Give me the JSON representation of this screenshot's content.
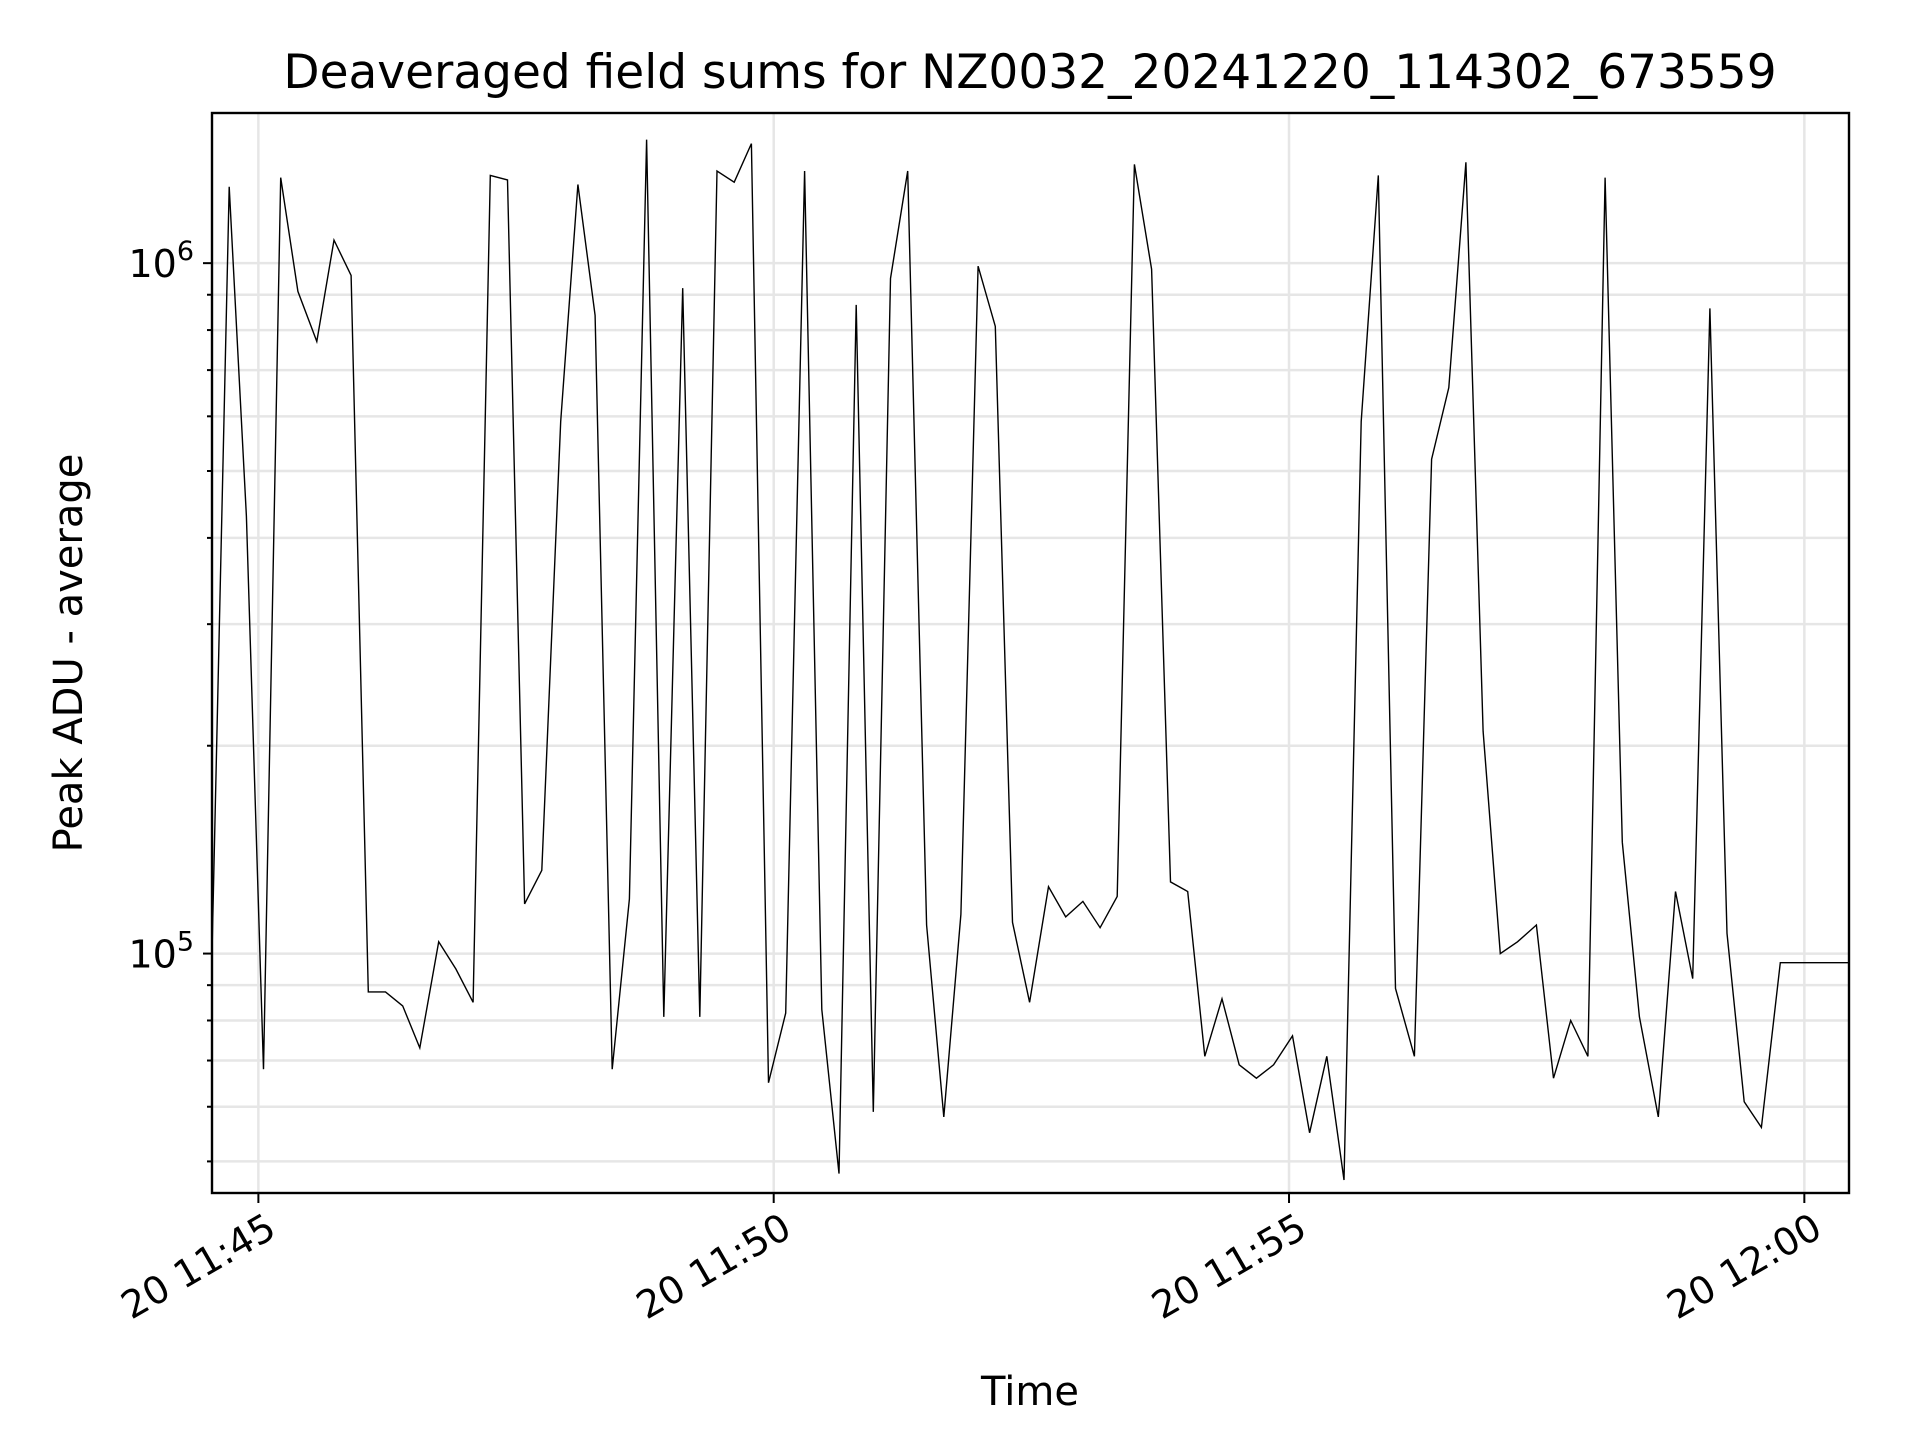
{
  "chart_data": {
    "type": "line",
    "title": "Deaveraged field sums for NZ0032_20241220_114302_673559",
    "xlabel": "Time",
    "ylabel": "Peak ADU - average",
    "yscale": "log",
    "x_unit": "time of day (HH:MM:SS), 2024-12-20",
    "xlim": [
      "11:44:33",
      "12:00:26"
    ],
    "ylim": [
      45000,
      1650000
    ],
    "grid": true,
    "x_ticks": [
      {
        "value": "11:45:00",
        "label": "20 11:45"
      },
      {
        "value": "11:50:00",
        "label": "20 11:50"
      },
      {
        "value": "11:55:00",
        "label": "20 11:55"
      },
      {
        "value": "12:00:00",
        "label": "20 12:00"
      }
    ],
    "y_ticks": [
      {
        "value": 100000,
        "label_base": "10",
        "label_exp": "5"
      },
      {
        "value": 1000000,
        "label_base": "10",
        "label_exp": "6"
      }
    ],
    "series": [
      {
        "color": "#000000",
        "points": [
          [
            "11:44:33",
            100000
          ],
          [
            "11:44:43",
            1290000
          ],
          [
            "11:44:53",
            430000
          ],
          [
            "11:45:03",
            68000
          ],
          [
            "11:45:13",
            1330000
          ],
          [
            "11:45:23",
            910000
          ],
          [
            "11:45:34",
            770000
          ],
          [
            "11:45:44",
            1080000
          ],
          [
            "11:45:54",
            960000
          ],
          [
            "11:46:04",
            88000
          ],
          [
            "11:46:14",
            88000
          ],
          [
            "11:46:24",
            84000
          ],
          [
            "11:46:34",
            73000
          ],
          [
            "11:46:45",
            104000
          ],
          [
            "11:46:55",
            95000
          ],
          [
            "11:47:05",
            85000
          ],
          [
            "11:47:15",
            1340000
          ],
          [
            "11:47:25",
            1320000
          ],
          [
            "11:47:35",
            118000
          ],
          [
            "11:47:45",
            132000
          ],
          [
            "11:47:56",
            590000
          ],
          [
            "11:48:06",
            1300000
          ],
          [
            "11:48:16",
            840000
          ],
          [
            "11:48:26",
            68000
          ],
          [
            "11:48:36",
            120000
          ],
          [
            "11:48:46",
            1510000
          ],
          [
            "11:48:56",
            81000
          ],
          [
            "11:49:07",
            920000
          ],
          [
            "11:49:17",
            81000
          ],
          [
            "11:49:27",
            1360000
          ],
          [
            "11:49:37",
            1310000
          ],
          [
            "11:49:47",
            1490000
          ],
          [
            "11:49:57",
            65000
          ],
          [
            "11:50:07",
            82000
          ],
          [
            "11:50:18",
            1360000
          ],
          [
            "11:50:28",
            83000
          ],
          [
            "11:50:38",
            48000
          ],
          [
            "11:50:48",
            870000
          ],
          [
            "11:50:58",
            59000
          ],
          [
            "11:51:08",
            950000
          ],
          [
            "11:51:18",
            1360000
          ],
          [
            "11:51:29",
            110000
          ],
          [
            "11:51:39",
            58000
          ],
          [
            "11:51:49",
            114000
          ],
          [
            "11:51:59",
            990000
          ],
          [
            "11:52:09",
            810000
          ],
          [
            "11:52:19",
            111000
          ],
          [
            "11:52:29",
            85000
          ],
          [
            "11:52:40",
            125000
          ],
          [
            "11:52:50",
            113000
          ],
          [
            "11:53:00",
            119000
          ],
          [
            "11:53:10",
            109000
          ],
          [
            "11:53:20",
            121000
          ],
          [
            "11:53:30",
            1390000
          ],
          [
            "11:53:40",
            980000
          ],
          [
            "11:53:51",
            127000
          ],
          [
            "11:54:01",
            123000
          ],
          [
            "11:54:11",
            71000
          ],
          [
            "11:54:21",
            86000
          ],
          [
            "11:54:31",
            69000
          ],
          [
            "11:54:41",
            66000
          ],
          [
            "11:54:51",
            69000
          ],
          [
            "11:55:02",
            76000
          ],
          [
            "11:55:12",
            55000
          ],
          [
            "11:55:22",
            71000
          ],
          [
            "11:55:32",
            47000
          ],
          [
            "11:55:42",
            590000
          ],
          [
            "11:55:52",
            1340000
          ],
          [
            "11:56:02",
            89000
          ],
          [
            "11:56:13",
            71000
          ],
          [
            "11:56:23",
            520000
          ],
          [
            "11:56:33",
            660000
          ],
          [
            "11:56:43",
            1400000
          ],
          [
            "11:56:53",
            210000
          ],
          [
            "11:57:03",
            100000
          ],
          [
            "11:57:13",
            104000
          ],
          [
            "11:57:24",
            110000
          ],
          [
            "11:57:34",
            66000
          ],
          [
            "11:57:44",
            80000
          ],
          [
            "11:57:54",
            71000
          ],
          [
            "11:58:04",
            1330000
          ],
          [
            "11:58:14",
            145000
          ],
          [
            "11:58:24",
            81000
          ],
          [
            "11:58:35",
            58000
          ],
          [
            "11:58:45",
            123000
          ],
          [
            "11:58:55",
            92000
          ],
          [
            "11:59:05",
            860000
          ],
          [
            "11:59:15",
            107000
          ],
          [
            "11:59:25",
            61000
          ],
          [
            "11:59:35",
            56000
          ],
          [
            "11:59:46",
            97000
          ],
          [
            "11:59:56",
            97000
          ],
          [
            "12:00:26",
            97000
          ]
        ]
      }
    ]
  }
}
